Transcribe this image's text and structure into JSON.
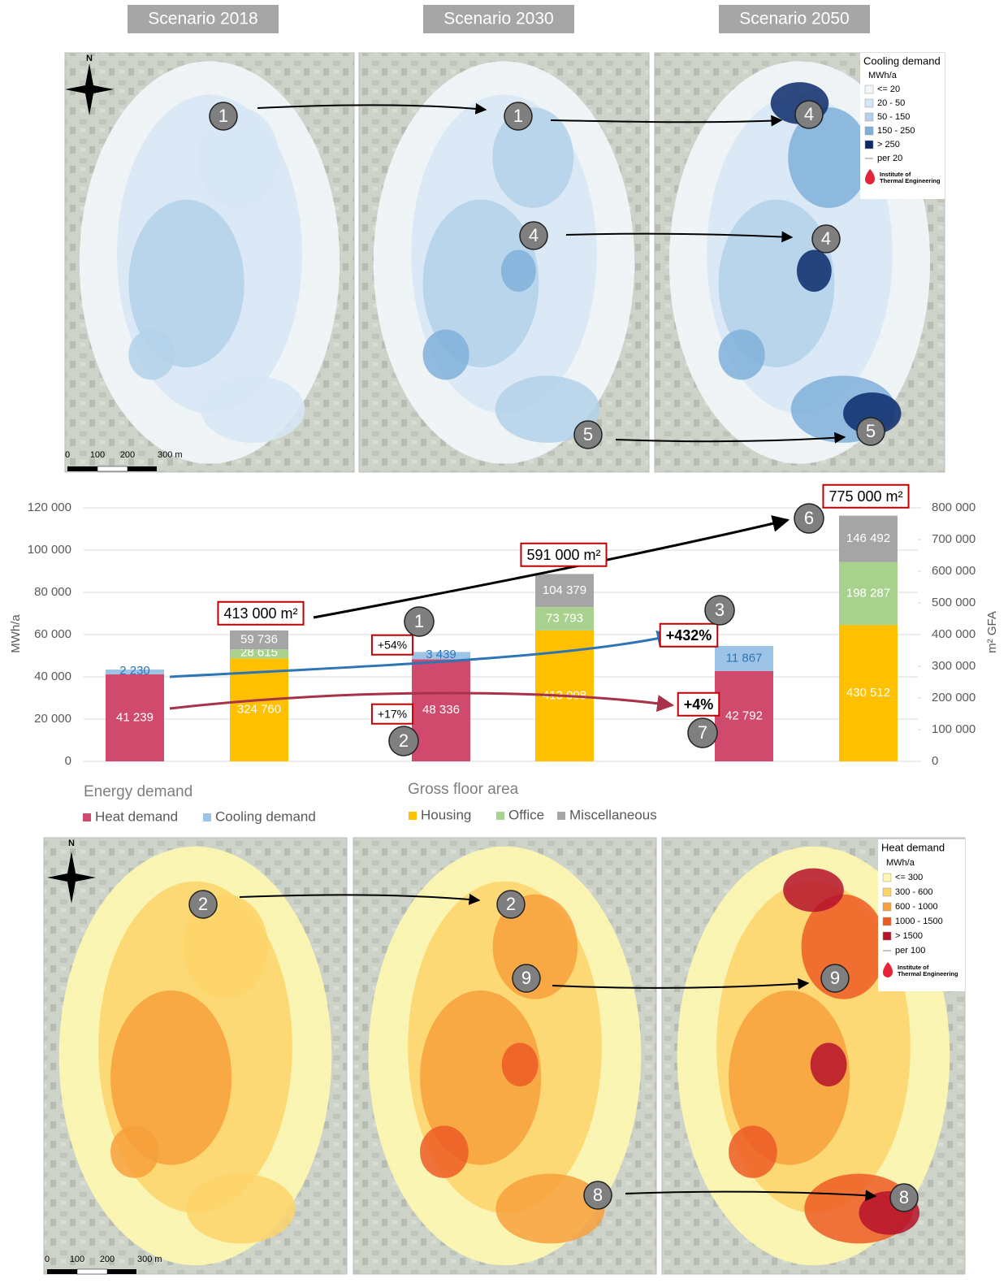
{
  "scenarios": [
    "Scenario 2018",
    "Scenario 2030",
    "Scenario 2050"
  ],
  "north": "N",
  "scale_bar": [
    "0",
    "100",
    "200",
    "300 m"
  ],
  "logo": [
    "Institute of",
    "Thermal Engineering"
  ],
  "cooling_legend": {
    "title": "Cooling demand",
    "unit": "MWh/a",
    "classes": [
      "<= 20",
      "20 - 50",
      "50 - 150",
      "150 - 250",
      "> 250"
    ],
    "colors": [
      "#f3f7fc",
      "#d6e6f4",
      "#b3d1ea",
      "#7fb0da",
      "#0b2a6b"
    ],
    "contour": "per 20"
  },
  "heat_legend": {
    "title": "Heat demand",
    "unit": "MWh/a",
    "classes": [
      "<= 300",
      "300 - 600",
      "600 - 1000",
      "1000 - 1500",
      "> 1500"
    ],
    "colors": [
      "#fff8b0",
      "#fdd36a",
      "#f7a03c",
      "#ec5a24",
      "#b5122b"
    ],
    "contour": "per 100"
  },
  "maps": {
    "cooling": [
      {
        "markers": [
          "1"
        ]
      },
      {
        "markers": [
          "1",
          "4",
          "5"
        ]
      },
      {
        "markers": [
          "4",
          "4",
          "5"
        ]
      }
    ],
    "heat": [
      {
        "markers": [
          "2"
        ]
      },
      {
        "markers": [
          "2",
          "9",
          "8"
        ]
      },
      {
        "markers": [
          "9",
          "8"
        ]
      }
    ]
  },
  "chart_data": {
    "type": "bar",
    "stacked": true,
    "categories": [
      null,
      null,
      null,
      null,
      null,
      null
    ],
    "ylabel": "MWh/a",
    "y2label": "m² GFA",
    "ylim": [
      0,
      120000
    ],
    "yticks": [
      0,
      {
        "value": 20000,
        "label": "20 000"
      },
      {
        "value": 40000,
        "label": "40 000"
      },
      {
        "value": 60000,
        "label": "60 000"
      },
      {
        "value": 80000,
        "label": "80 000"
      },
      {
        "value": 100000,
        "label": "100 000"
      },
      {
        "value": 120000,
        "label": "120 000"
      }
    ],
    "y2lim": [
      0,
      800000
    ],
    "y2ticks": [
      0,
      {
        "value": 100000,
        "label": "100 000"
      },
      {
        "value": 200000,
        "label": "200 000"
      },
      {
        "value": 300000,
        "label": "300 000"
      },
      {
        "value": 400000,
        "label": "400 000"
      },
      {
        "value": 500000,
        "label": "500 000"
      },
      {
        "value": 600000,
        "label": "600 000"
      },
      {
        "value": 700000,
        "label": "700 000"
      },
      {
        "value": 800000,
        "label": "800 000"
      }
    ],
    "grid": true,
    "legend_groups": [
      "Energy demand",
      "Gross floor area"
    ],
    "series": [
      {
        "name": "Heat demand",
        "color": "#d04a6e",
        "axis": "y",
        "values": [
          41239,
          null,
          48336,
          null,
          42792,
          null
        ],
        "value_labels": [
          "41 239",
          null,
          "48 336",
          null,
          "42 792",
          null
        ]
      },
      {
        "name": "Cooling demand",
        "color": "#9dc3e6",
        "axis": "y",
        "values": [
          2230,
          null,
          3439,
          null,
          11867,
          null
        ],
        "value_labels": [
          "2 230",
          null,
          "3 439",
          null,
          "11 867",
          null
        ]
      },
      {
        "name": "Housing",
        "color": "#ffc000",
        "axis": "y2",
        "values": [
          null,
          324760,
          null,
          413008,
          null,
          430512
        ],
        "value_labels": [
          null,
          "324 760",
          null,
          "413 008",
          null,
          "430 512"
        ]
      },
      {
        "name": "Office",
        "color": "#a9d18e",
        "axis": "y2",
        "values": [
          null,
          28615,
          null,
          73793,
          null,
          198287
        ],
        "value_labels": [
          null,
          "28 615",
          null,
          "73 793",
          null,
          "198 287"
        ]
      },
      {
        "name": "Miscellaneous",
        "color": "#a5a5a5",
        "axis": "y2",
        "values": [
          null,
          59736,
          null,
          104379,
          null,
          146492
        ],
        "value_labels": [
          null,
          "59 736",
          null,
          "104 379",
          null,
          "146 492"
        ]
      }
    ],
    "annotations": [
      "413 000 m²",
      "591 000 m²",
      "775 000 m²",
      "+54%",
      "+17%",
      "+432%",
      "+4%",
      "1",
      "2",
      "3",
      "6",
      "7"
    ]
  }
}
